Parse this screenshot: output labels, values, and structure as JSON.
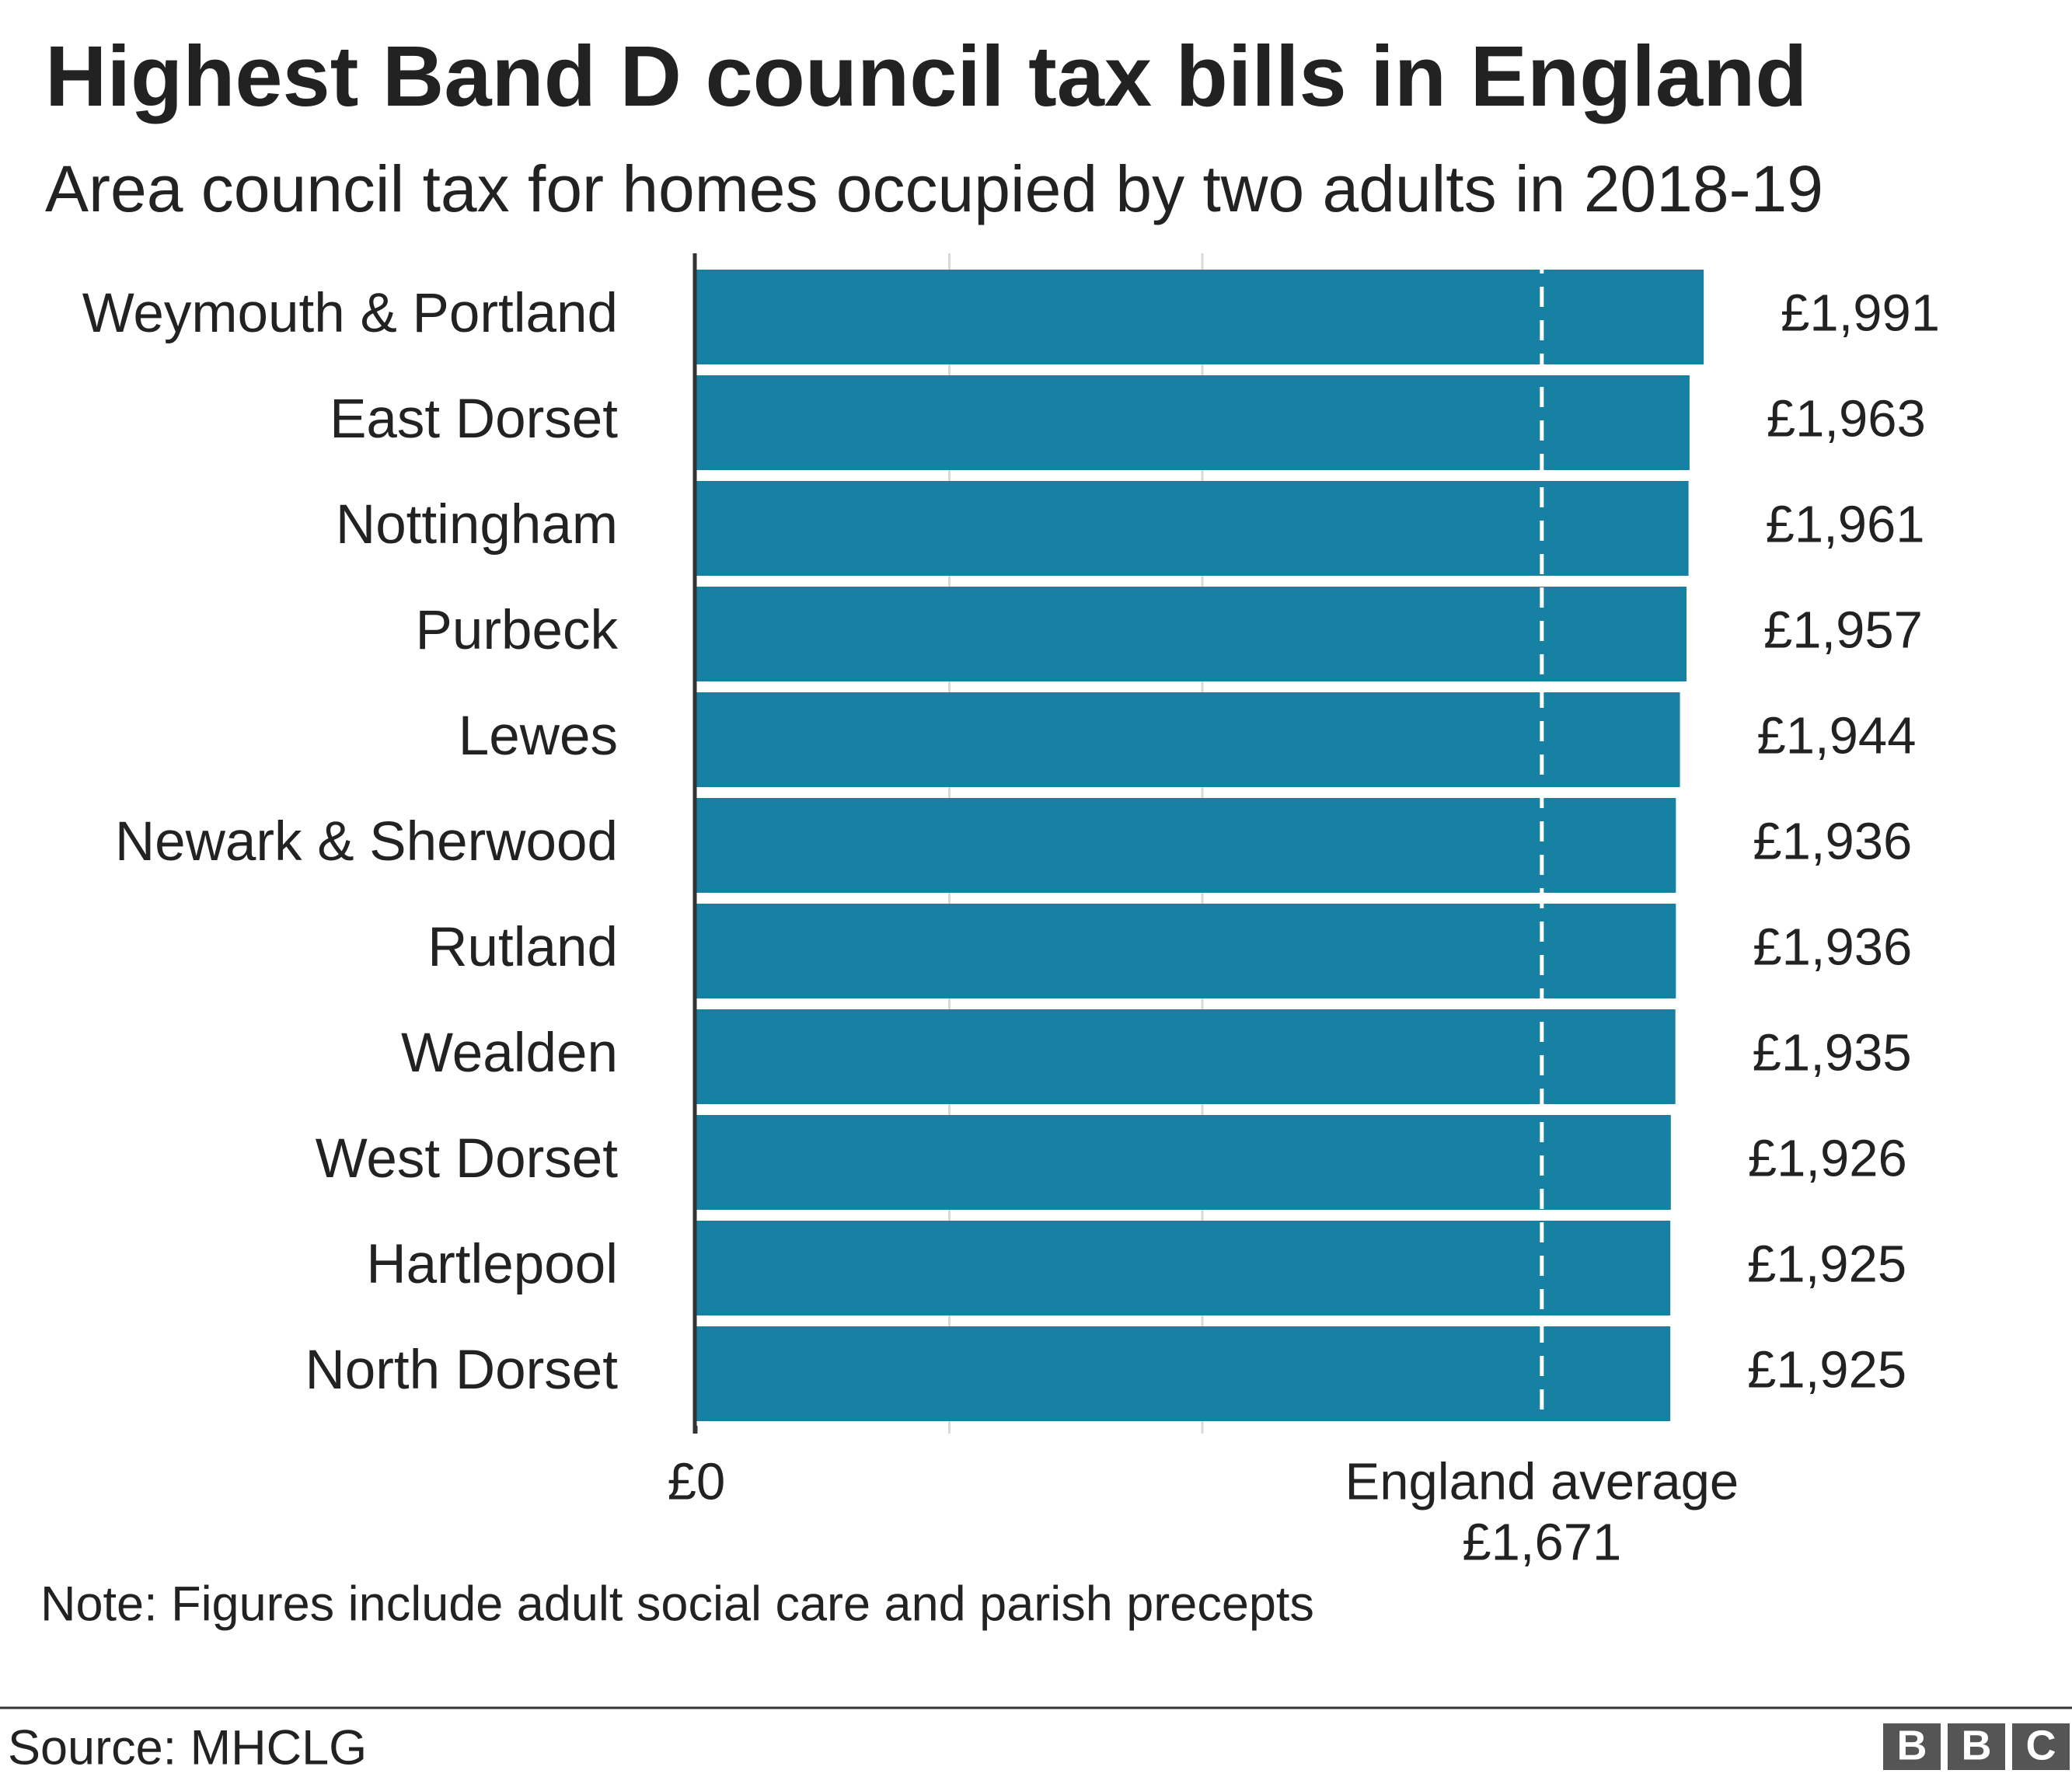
{
  "chart_data": {
    "type": "bar",
    "orientation": "horizontal",
    "title": "Highest Band D council tax bills in England",
    "subtitle": "Area council tax for homes occupied by two adults in 2018-19",
    "categories": [
      "Weymouth & Portland",
      "East Dorset",
      "Nottingham",
      "Purbeck",
      "Lewes",
      "Newark & Sherwood",
      "Rutland",
      "Wealden",
      "West Dorset",
      "Hartlepool",
      "North Dorset"
    ],
    "values": [
      1991,
      1963,
      1961,
      1957,
      1944,
      1936,
      1936,
      1935,
      1926,
      1925,
      1925
    ],
    "value_labels": [
      "£1,991",
      "£1,963",
      "£1,961",
      "£1,957",
      "£1,944",
      "£1,936",
      "£1,936",
      "£1,935",
      "£1,926",
      "£1,925",
      "£1,925"
    ],
    "color": "#1781a3",
    "xlim": [
      0,
      2000
    ],
    "xticks": [
      {
        "value": 0,
        "label": "£0"
      }
    ],
    "xgrid": [
      500,
      1000
    ],
    "grid": true,
    "reference_line": {
      "value": 1671,
      "label": "England average",
      "value_label": "£1,671"
    },
    "note": "Note: Figures include adult social care and parish precepts",
    "source": "Source: MHCLG",
    "logo": [
      "B",
      "B",
      "C"
    ]
  }
}
